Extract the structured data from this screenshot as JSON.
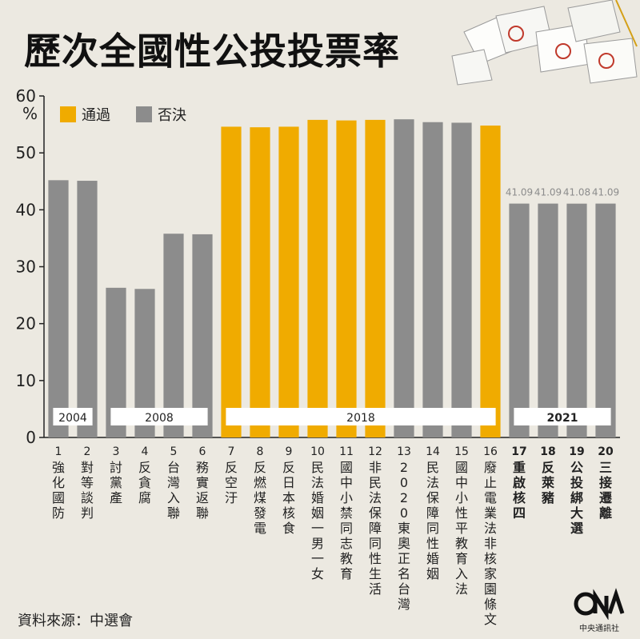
{
  "title": "歷次全國性公投投票率",
  "source": "資料來源：中選會",
  "logo": {
    "mark": "CNA",
    "org": "中央通訊社"
  },
  "chart_data": {
    "type": "bar",
    "yunit": "%",
    "ylim": [
      0,
      60
    ],
    "yticks": [
      0,
      10,
      20,
      30,
      40,
      50,
      60
    ],
    "legend": [
      {
        "name": "通過",
        "color": "#f0ab00"
      },
      {
        "name": "否決",
        "color": "#8c8c8c"
      }
    ],
    "bars": [
      {
        "num": "1",
        "label": "強化國防",
        "value": 45.2,
        "result": "否決"
      },
      {
        "num": "2",
        "label": "對等談判",
        "value": 45.1,
        "result": "否決"
      },
      {
        "num": "3",
        "label": "討黨產",
        "value": 26.3,
        "result": "否決"
      },
      {
        "num": "4",
        "label": "反貪腐",
        "value": 26.1,
        "result": "否決"
      },
      {
        "num": "5",
        "label": "台灣入聯",
        "value": 35.8,
        "result": "否決"
      },
      {
        "num": "6",
        "label": "務實返聯",
        "value": 35.7,
        "result": "否決"
      },
      {
        "num": "7",
        "label": "反空汙",
        "value": 54.6,
        "result": "通過"
      },
      {
        "num": "8",
        "label": "反燃煤發電",
        "value": 54.5,
        "result": "通過"
      },
      {
        "num": "9",
        "label": "反日本核食",
        "value": 54.6,
        "result": "通過"
      },
      {
        "num": "10",
        "label": "民法婚姻一男一女",
        "value": 55.8,
        "result": "通過"
      },
      {
        "num": "11",
        "label": "國中小禁同志教育",
        "value": 55.7,
        "result": "通過"
      },
      {
        "num": "12",
        "label": "非民法保障同性生活",
        "value": 55.8,
        "result": "通過"
      },
      {
        "num": "13",
        "label": "2020東奧正名台灣",
        "value": 55.9,
        "result": "否決"
      },
      {
        "num": "14",
        "label": "民法保障同性婚姻",
        "value": 55.4,
        "result": "否決"
      },
      {
        "num": "15",
        "label": "國中小性平教育入法",
        "value": 55.3,
        "result": "否決"
      },
      {
        "num": "16",
        "label": "廢止電業法非核家園條文",
        "value": 54.8,
        "result": "通過"
      },
      {
        "num": "17",
        "label": "重啟核四",
        "value": 41.09,
        "result": "否決",
        "data_label": "41.09"
      },
      {
        "num": "18",
        "label": "反萊豬",
        "value": 41.09,
        "result": "否決",
        "data_label": "41.09"
      },
      {
        "num": "19",
        "label": "公投綁大選",
        "value": 41.08,
        "result": "否決",
        "data_label": "41.08"
      },
      {
        "num": "20",
        "label": "三接遷離",
        "value": 41.09,
        "result": "否決",
        "data_label": "41.09"
      }
    ],
    "periods": [
      {
        "label": "2004",
        "from": 1,
        "to": 2
      },
      {
        "label": "2008",
        "from": 3,
        "to": 6
      },
      {
        "label": "2018",
        "from": 7,
        "to": 16
      },
      {
        "label": "2021",
        "from": 17,
        "to": 20
      }
    ]
  }
}
